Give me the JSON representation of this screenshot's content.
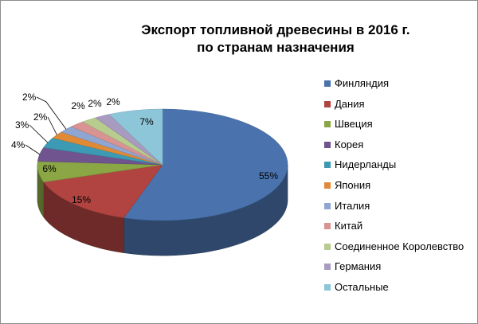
{
  "chart_data": {
    "type": "pie",
    "style": "3d",
    "title": [
      "Экспорт топливной древесины в 2016 г.",
      "по странам назначения"
    ],
    "legend_position": "right",
    "categories": [
      "Финляндия",
      "Дания",
      "Швеция",
      "Корея",
      "Нидерланды",
      "Япония",
      "Италия",
      "Китай",
      "Соединенное Королевство",
      "Германия",
      "Остальные"
    ],
    "values": [
      55,
      15,
      6,
      4,
      3,
      2,
      2,
      2,
      2,
      2,
      7
    ],
    "labels": [
      "55%",
      "15%",
      "6%",
      "4%",
      "3%",
      "2%",
      "2%",
      "2%",
      "2%",
      "2%",
      "7%"
    ],
    "colors": [
      "#4a73ad",
      "#b14441",
      "#8aa645",
      "#6f548f",
      "#3c9ab4",
      "#e08a36",
      "#8fa6d3",
      "#d89392",
      "#b7cc8e",
      "#a99bc0",
      "#8ec6d9"
    ]
  }
}
